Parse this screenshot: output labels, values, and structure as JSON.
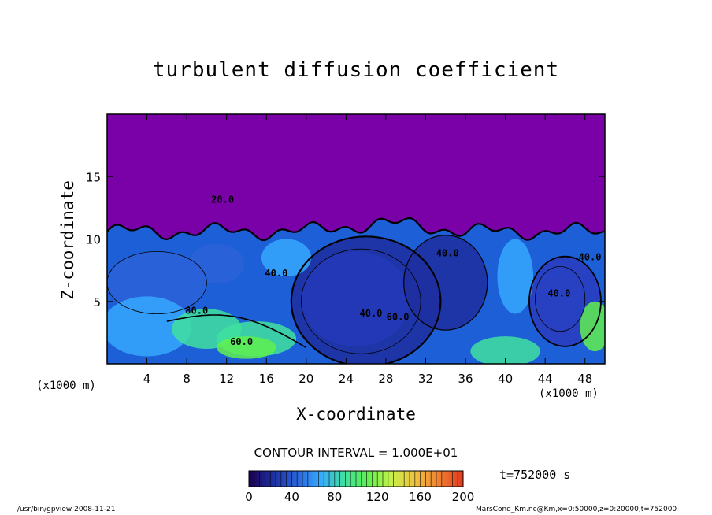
{
  "figure": {
    "title": "turbulent diffusion coefficient",
    "contour_interval": "CONTOUR INTERVAL = 1.000E+01",
    "time_label": "t=752000 s",
    "footer_left": "/usr/bin/gpview   2008-11-21",
    "footer_right": "MarsCond_Km.nc@Km,x=0:50000,z=0:20000,t=752000"
  },
  "chart_data": {
    "type": "heatmap",
    "title": "turbulent diffusion coefficient",
    "xlabel": "X-coordinate",
    "ylabel": "Z-coordinate",
    "x_unit": "(x1000 m)",
    "xlim": [
      0,
      50
    ],
    "ylim": [
      0,
      20
    ],
    "x_ticks": [
      4,
      8,
      12,
      16,
      20,
      24,
      28,
      32,
      36,
      40,
      44,
      48
    ],
    "y_ticks": [
      5,
      10,
      15
    ],
    "colorbar": {
      "range": [
        0,
        200
      ],
      "ticks": [
        0,
        40,
        80,
        120,
        160,
        200
      ],
      "palette": [
        "#1a0050",
        "#1e2ea0",
        "#2a62d8",
        "#36a8ff",
        "#40e0a0",
        "#60f050",
        "#c8f048",
        "#f0c040",
        "#f08030",
        "#e03820"
      ]
    },
    "background_color": "#7a00a8",
    "contour_labels": [
      {
        "x": 11.6,
        "z": 12.9,
        "text": "20.0"
      },
      {
        "x": 17.0,
        "z": 7.0,
        "text": "40.0"
      },
      {
        "x": 9.0,
        "z": 4.0,
        "text": "80.0"
      },
      {
        "x": 13.5,
        "z": 1.5,
        "text": "60.0"
      },
      {
        "x": 26.5,
        "z": 3.8,
        "text": "40.0"
      },
      {
        "x": 29.2,
        "z": 3.5,
        "text": "60.0"
      },
      {
        "x": 34.2,
        "z": 8.6,
        "text": "40.0"
      },
      {
        "x": 45.4,
        "z": 5.4,
        "text": "40.0"
      },
      {
        "x": 48.5,
        "z": 8.3,
        "text": "40.0"
      }
    ]
  }
}
